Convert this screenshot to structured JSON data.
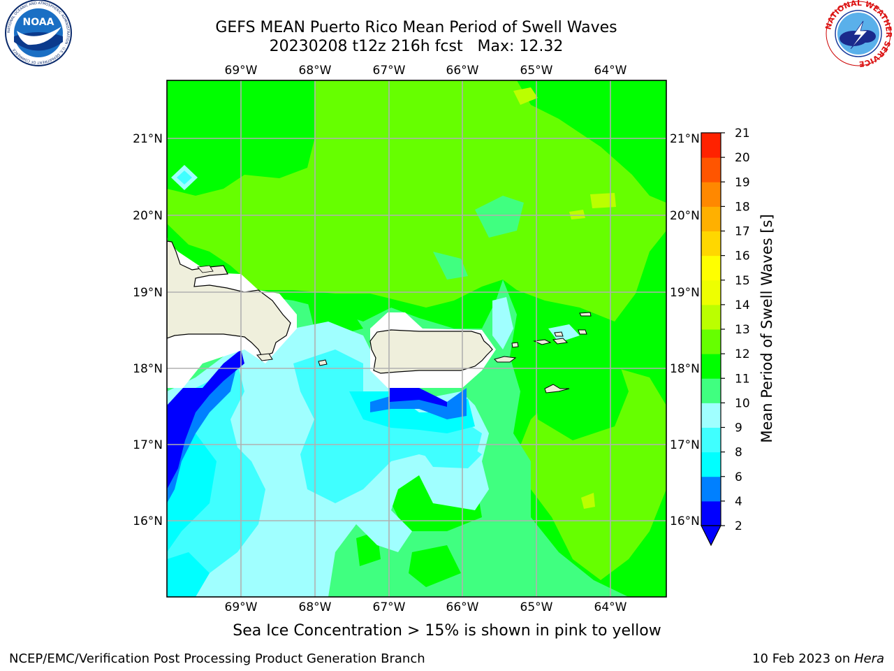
{
  "header": {
    "title_line1": "GEFS MEAN Puerto Rico Mean Period of Swell Waves",
    "title_line2": "20230208 t12z 216h fcst   Max: 12.32"
  },
  "logos": {
    "noaa_text": "NOAA",
    "noaa_ring_text": "NATIONAL OCEANIC AND ATMOSPHERIC ADMINISTRATION · U.S. DEPARTMENT OF COMMERCE",
    "nws_ring_text": "NATIONAL WEATHER SERVICE"
  },
  "map": {
    "lon_ticks": [
      "69°W",
      "68°W",
      "67°W",
      "66°W",
      "65°W",
      "64°W"
    ],
    "lat_ticks": [
      "21°N",
      "20°N",
      "19°N",
      "18°N",
      "17°N",
      "16°N"
    ]
  },
  "colorbar": {
    "label": "Mean Period of Swell Waves [s]",
    "ticks": [
      "2",
      "4",
      "6",
      "8",
      "9",
      "10",
      "11",
      "12",
      "13",
      "14",
      "15",
      "16",
      "17",
      "18",
      "19",
      "20",
      "21"
    ],
    "colors": [
      "#0000ff",
      "#0080ff",
      "#00ffff",
      "#40ffff",
      "#a0ffff",
      "#40ff80",
      "#00ff00",
      "#66ff00",
      "#bbff00",
      "#eeff00",
      "#ffff00",
      "#ffd700",
      "#ffb000",
      "#ff8800",
      "#ff5500",
      "#ff2200"
    ],
    "extend_color": "#0000ff"
  },
  "caption": "Sea Ice Concentration > 15% is shown in pink to yellow",
  "footer": {
    "left": "NCEP/EMC/Verification Post Processing Product Generation Branch",
    "right_prefix": "10 Feb 2023 on ",
    "right_host": "Hera"
  }
}
